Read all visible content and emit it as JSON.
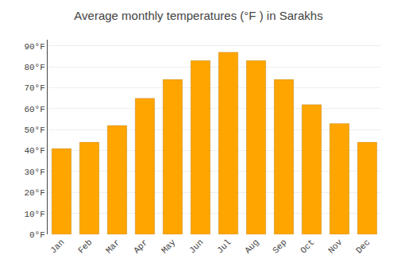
{
  "chart_data": {
    "type": "bar",
    "title": "Average monthly temperatures (°F ) in Sarakhs",
    "categories": [
      "Jan",
      "Feb",
      "Mar",
      "Apr",
      "May",
      "Jun",
      "Jul",
      "Aug",
      "Sep",
      "Oct",
      "Nov",
      "Dec"
    ],
    "values": [
      41,
      44,
      52,
      65,
      74,
      83,
      87,
      83,
      74,
      62,
      53,
      44
    ],
    "color": "#FFA500",
    "ylim": [
      0,
      93
    ],
    "yticks": [
      {
        "value": 0,
        "label": "0°F"
      },
      {
        "value": 10,
        "label": "10°F"
      },
      {
        "value": 20,
        "label": "20°F"
      },
      {
        "value": 30,
        "label": "30°F"
      },
      {
        "value": 40,
        "label": "40°F"
      },
      {
        "value": 50,
        "label": "50°F"
      },
      {
        "value": 60,
        "label": "60°F"
      },
      {
        "value": 70,
        "label": "70°F"
      },
      {
        "value": 80,
        "label": "80°F"
      },
      {
        "value": 90,
        "label": "90°F"
      }
    ],
    "grid": true
  }
}
